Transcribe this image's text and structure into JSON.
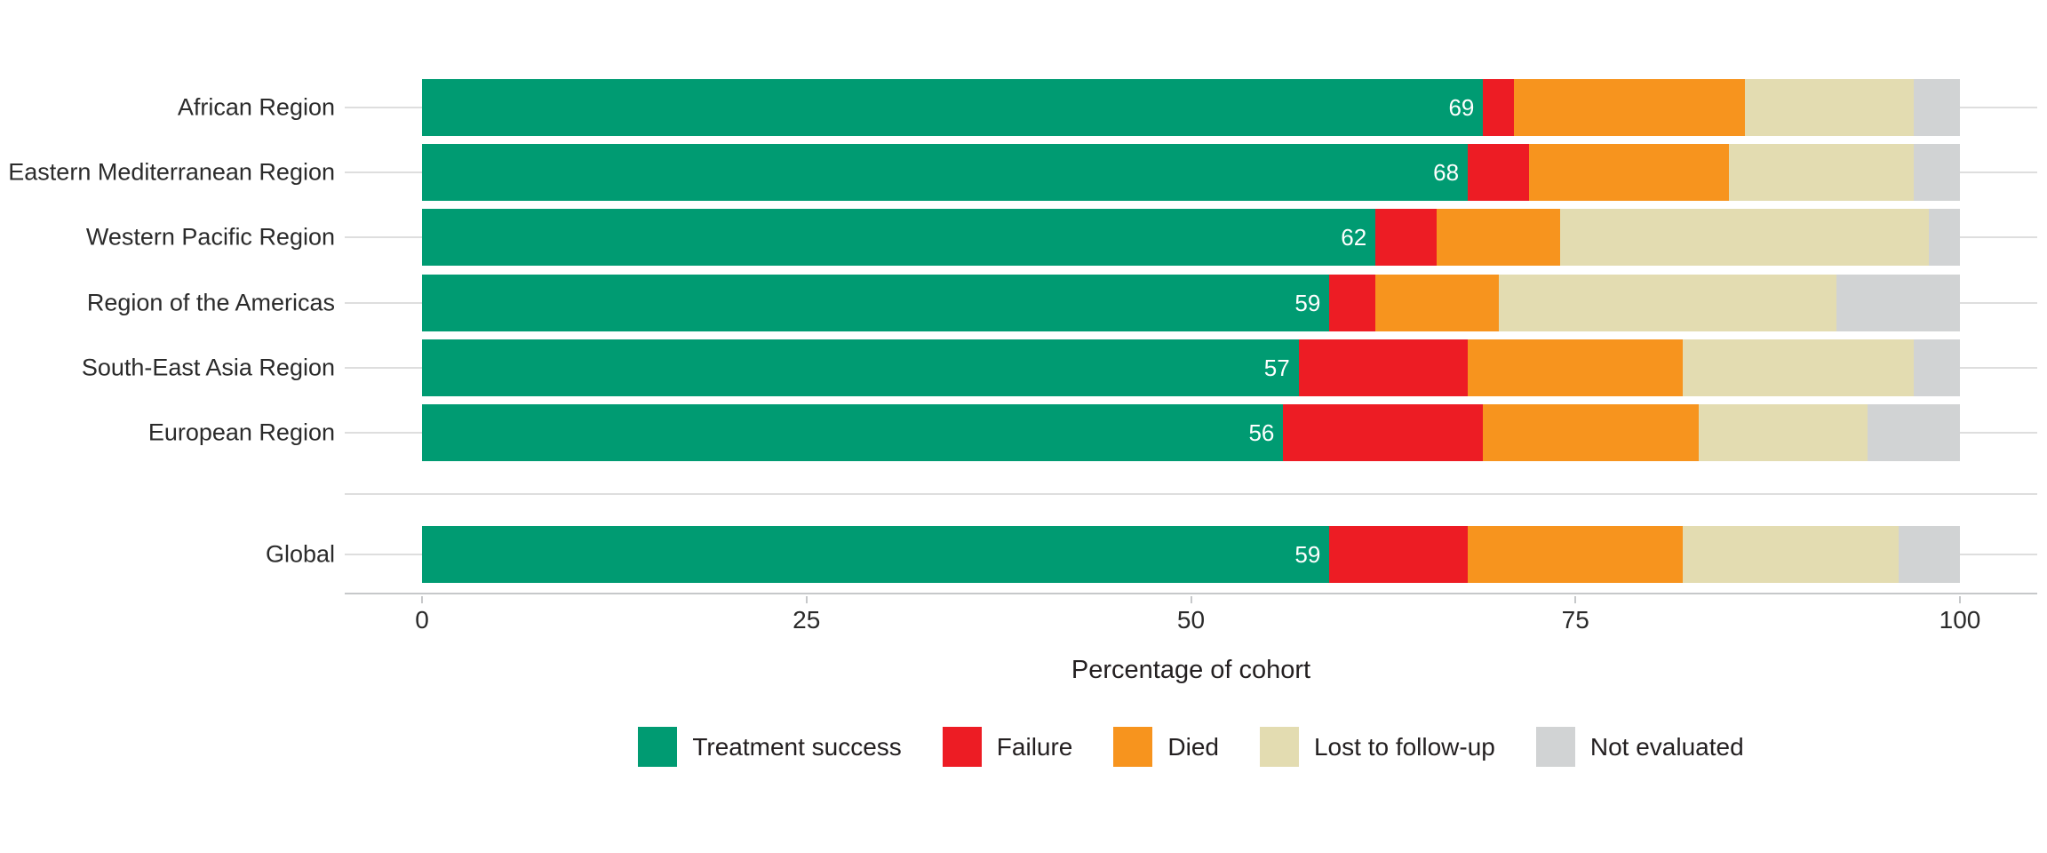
{
  "chart_data": {
    "type": "bar",
    "orientation": "horizontal",
    "stacked": true,
    "title": "",
    "xlabel": "Percentage of cohort",
    "ylabel": "",
    "xlim": [
      0,
      100
    ],
    "x_ticks": [
      "0",
      "25",
      "50",
      "75",
      "100"
    ],
    "grid": "horizontal category gridlines",
    "legend_position": "bottom",
    "categories": [
      "African Region",
      "Eastern Mediterranean Region",
      "Western Pacific Region",
      "Region of the Americas",
      "South-East Asia Region",
      "European Region",
      "Global"
    ],
    "series": [
      {
        "name": "Treatment success",
        "color": "#009b72",
        "values": [
          69,
          68,
          62,
          59,
          57,
          56,
          59
        ]
      },
      {
        "name": "Failure",
        "color": "#ed1c24",
        "values": [
          2,
          4,
          4,
          3,
          11,
          13,
          9
        ]
      },
      {
        "name": "Died",
        "color": "#f7941e",
        "values": [
          15,
          13,
          8,
          8,
          14,
          14,
          14
        ]
      },
      {
        "name": "Lost to follow-up",
        "color": "#e3dcb1",
        "values": [
          11,
          12,
          24,
          22,
          15,
          11,
          14
        ]
      },
      {
        "name": "Not evaluated",
        "color": "#d1d3d4",
        "values": [
          3,
          3,
          2,
          8,
          3,
          6,
          4
        ]
      }
    ],
    "bar_value_labels": [
      "69",
      "68",
      "62",
      "59",
      "57",
      "56",
      "59"
    ]
  },
  "legend": {
    "items": [
      {
        "label": "Treatment success",
        "color": "#009b72"
      },
      {
        "label": "Failure",
        "color": "#ed1c24"
      },
      {
        "label": "Died",
        "color": "#f7941e"
      },
      {
        "label": "Lost to follow-up",
        "color": "#e3dcb1"
      },
      {
        "label": "Not evaluated",
        "color": "#d1d3d4"
      }
    ]
  },
  "colors": {
    "background": "#ffffff",
    "gridline": "#dedede",
    "axis_line": "#c6c8ca",
    "tick_label": "#2a2a2a",
    "category_label": "#2b2b2b",
    "bar_value_label": "#ffffff"
  }
}
